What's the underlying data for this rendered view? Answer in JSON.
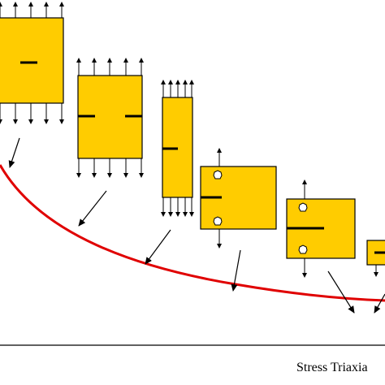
{
  "x_axis_label": "Stress Triaxia"
}
